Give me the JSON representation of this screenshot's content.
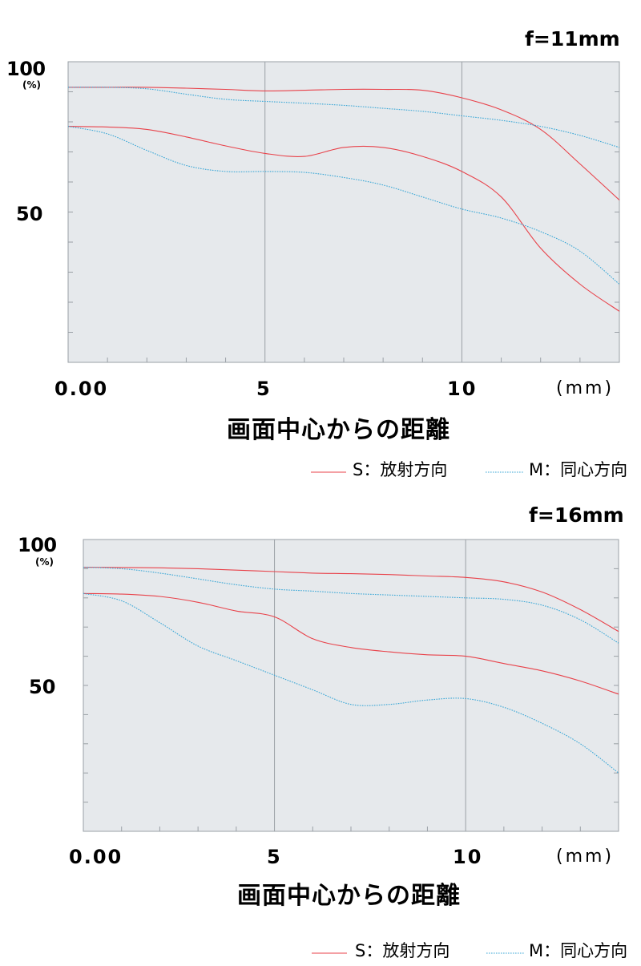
{
  "legend": {
    "sagittal_label": "S：放射方向",
    "meridional_label": "M：同心方向"
  },
  "colors": {
    "sagittal": "#e8424a",
    "meridional": "#3aa7d6",
    "plot_bg": "#e6e9ec",
    "grid": "#9aa0a6"
  },
  "chart_data": [
    {
      "type": "line",
      "title": "f=11mm",
      "xlabel": "画面中心からの距離",
      "ylabel": "",
      "x_unit_label": "(mm)",
      "y_unit_label": "(%)",
      "xlim": [
        0,
        14
      ],
      "ylim": [
        0,
        100
      ],
      "y_tick_labels": [
        "100",
        "50"
      ],
      "x_tick_labels": [
        "0.00",
        "5",
        "10"
      ],
      "grid": true,
      "legend_position": "bottom-right",
      "series": [
        {
          "name": "S：放射方向",
          "color": "#e8424a",
          "style": "solid",
          "x": [
            0,
            1,
            2,
            3,
            4,
            5,
            6,
            7,
            8,
            9,
            10,
            11,
            12,
            13,
            14
          ],
          "values": [
            91.5,
            91.5,
            91.5,
            91.2,
            90.8,
            90.3,
            90.5,
            90.8,
            90.8,
            90.5,
            88,
            84,
            77.5,
            66,
            54
          ]
        },
        {
          "name": "S：放射方向",
          "color": "#e8424a",
          "style": "solid",
          "x": [
            0,
            1,
            2,
            3,
            4,
            5,
            6,
            7,
            8,
            9,
            10,
            11,
            12,
            13,
            14
          ],
          "values": [
            78.5,
            78.3,
            77.5,
            75,
            72,
            69.5,
            68.5,
            71.5,
            71.5,
            68.5,
            63.5,
            55,
            38,
            26,
            17
          ]
        },
        {
          "name": "M：同心方向",
          "color": "#3aa7d6",
          "style": "dotted",
          "x": [
            0,
            1,
            2,
            3,
            4,
            5,
            6,
            7,
            8,
            9,
            10,
            11,
            12,
            13,
            14
          ],
          "values": [
            91.5,
            91.5,
            91,
            89.2,
            87.5,
            86.8,
            86.2,
            85.5,
            84.5,
            83.5,
            82,
            80.5,
            78.5,
            75.5,
            71.5
          ]
        },
        {
          "name": "M：同心方向",
          "color": "#3aa7d6",
          "style": "dotted",
          "x": [
            0,
            1,
            2,
            3,
            4,
            5,
            6,
            7,
            8,
            9,
            10,
            11,
            12,
            13,
            14
          ],
          "values": [
            78.5,
            76,
            70.5,
            65.5,
            63.5,
            63.5,
            63.2,
            61.5,
            59,
            55,
            51,
            48,
            43.5,
            37,
            26
          ]
        }
      ]
    },
    {
      "type": "line",
      "title": "f=16mm",
      "xlabel": "画面中心からの距離",
      "ylabel": "",
      "x_unit_label": "(mm)",
      "y_unit_label": "(%)",
      "xlim": [
        0,
        14
      ],
      "ylim": [
        0,
        100
      ],
      "y_tick_labels": [
        "100",
        "50"
      ],
      "x_tick_labels": [
        "0.00",
        "5",
        "10"
      ],
      "grid": true,
      "legend_position": "bottom-right",
      "series": [
        {
          "name": "S：放射方向",
          "color": "#e8424a",
          "style": "solid",
          "x": [
            0,
            1,
            2,
            3,
            4,
            5,
            6,
            7,
            8,
            9,
            10,
            11,
            12,
            13,
            14
          ],
          "values": [
            90.5,
            90.4,
            90.3,
            90,
            89.5,
            89,
            88.5,
            88.3,
            88,
            87.5,
            87,
            85.5,
            82,
            76,
            68.5
          ]
        },
        {
          "name": "S：放射方向",
          "color": "#e8424a",
          "style": "solid",
          "x": [
            0,
            1,
            2,
            3,
            4,
            5,
            6,
            7,
            8,
            9,
            10,
            11,
            12,
            13,
            14
          ],
          "values": [
            81.5,
            81.3,
            80.5,
            78.5,
            75.5,
            73.5,
            66,
            63,
            61.5,
            60.5,
            60,
            57.5,
            55,
            51.5,
            47
          ]
        },
        {
          "name": "M：同心方向",
          "color": "#3aa7d6",
          "style": "dotted",
          "x": [
            0,
            1,
            2,
            3,
            4,
            5,
            6,
            7,
            8,
            9,
            10,
            11,
            12,
            13,
            14
          ],
          "values": [
            90.5,
            90,
            88.5,
            86.5,
            84.5,
            83,
            82.3,
            81.5,
            81,
            80.5,
            80,
            79.5,
            77.5,
            72.5,
            64.5
          ]
        },
        {
          "name": "M：同心方向",
          "color": "#3aa7d6",
          "style": "dotted",
          "x": [
            0,
            1,
            2,
            3,
            4,
            5,
            6,
            7,
            8,
            9,
            10,
            11,
            12,
            13,
            14
          ],
          "values": [
            81.5,
            79,
            71.5,
            63.5,
            58.5,
            53.5,
            48.5,
            43.5,
            43.5,
            45,
            45.5,
            42.5,
            37,
            30,
            20
          ]
        }
      ]
    }
  ]
}
